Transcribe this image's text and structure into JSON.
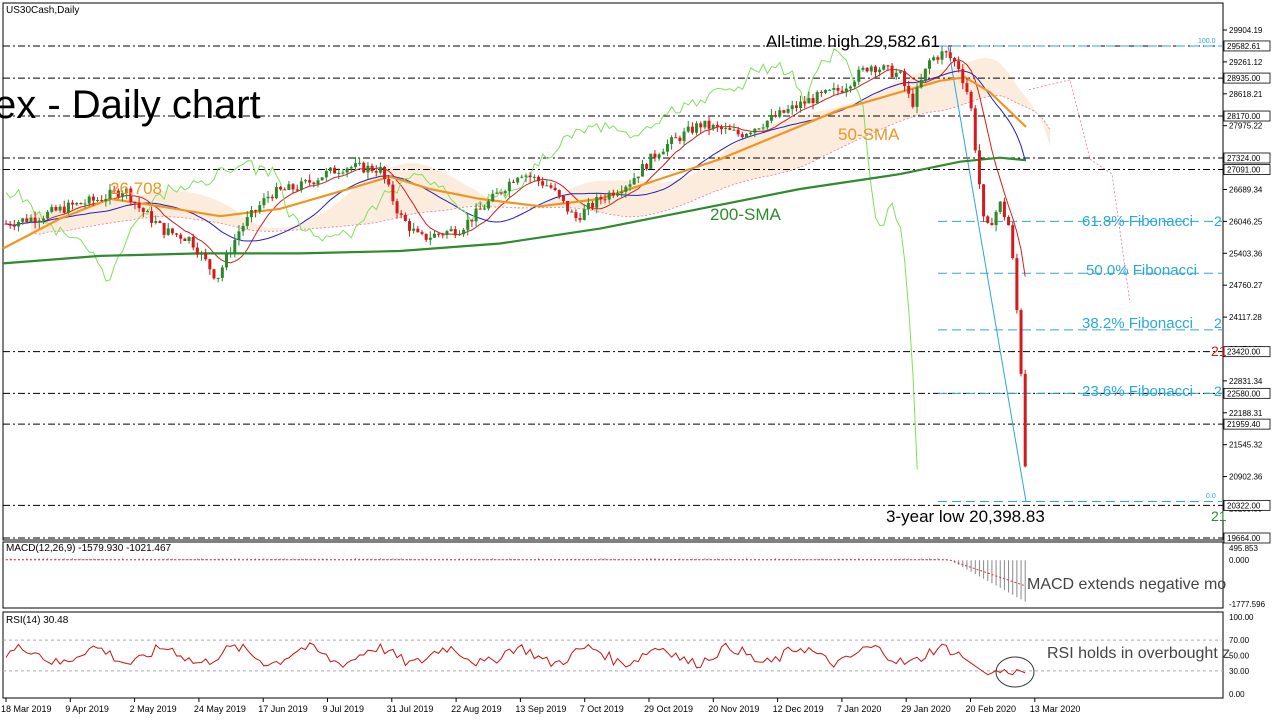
{
  "symbol_label": "US30Cash,Daily",
  "chart_title": "ex - Daily chart",
  "annotations": {
    "ath": "All-time high 29,582.61",
    "low": "3-year low 20,398.83",
    "sma50": "50-SMA",
    "sma200": "200-SMA",
    "level_26708": "26,708",
    "fib618": "61.8% Fibonacci",
    "fib50": "50.0% Fibonacci",
    "fib382": "38.2% Fibonacci",
    "fib236": "23.6% Fibonacci",
    "edge_21a": "21",
    "edge_21b": "21",
    "edge_2a": "2",
    "edge_2b": "2",
    "edge_2c": "2",
    "fib_small_100": "100.0",
    "fib_small_0": "0.0",
    "macd_note": "MACD extends negative mo",
    "rsi_note": "RSI holds in overbought z"
  },
  "panels": {
    "macd_label": "MACD(12,26,9) -1579.930 -1021.467",
    "rsi_label": "RSI(14) 30.48"
  },
  "colors": {
    "up_candle": "#2a8a2a",
    "down_candle": "#d41a1a",
    "sma50": "#f0951e",
    "sma200": "#2e8b2e",
    "chikou": "#7ee05a",
    "tenkan": "#d02020",
    "kijun": "#2020c0",
    "cloud": "#f5c9a0",
    "fib": "#2aa8d8",
    "hline": "#000000",
    "rsi_line": "#cc1111",
    "macd_signal": "#e03030"
  },
  "chart_data": [
    {
      "type": "candlestick",
      "series": [
        {
          "name": "50-SMA"
        },
        {
          "name": "200-SMA"
        }
      ],
      "y_ticks": [
        "29904.19",
        "29261.12",
        "28618.21",
        "27975.22",
        "27332.26",
        "26689.34",
        "26046.25",
        "25403.36",
        "24760.27",
        "24117.28",
        "23474.31",
        "22831.34",
        "22188.31",
        "21545.32",
        "20902.36",
        "20259.39"
      ],
      "y_range": [
        19664,
        29904.19
      ],
      "highlighted_levels": [
        {
          "value": 29582.61,
          "label": "29582.61",
          "style": "white"
        },
        {
          "value": 28935.0,
          "label": "28935.00",
          "style": "white"
        },
        {
          "value": 28170.0,
          "label": "28170.00",
          "style": "white"
        },
        {
          "value": 27324.0,
          "label": "27324.00",
          "style": "white"
        },
        {
          "value": 27091.0,
          "label": "27091.00",
          "style": "white"
        },
        {
          "value": 23420.0,
          "label": "23420.00",
          "style": "white"
        },
        {
          "value": 22580.0,
          "label": "22580.00",
          "style": "white"
        },
        {
          "value": 21959.4,
          "label": "21959.40",
          "style": "white"
        },
        {
          "value": 20322.0,
          "label": "20322.00",
          "style": "white"
        },
        {
          "value": 19664.0,
          "label": "19664.00",
          "style": "white"
        }
      ],
      "fib_levels": [
        {
          "value": 26046.25,
          "name": "61.8% Fibonacci"
        },
        {
          "value": 25000,
          "name": "50.0% Fibonacci"
        },
        {
          "value": 23860,
          "name": "38.2% Fibonacci"
        },
        {
          "value": 22580,
          "name": "23.6% Fibonacci"
        }
      ],
      "x_labels": [
        "18 Mar 2019",
        "9 Apr 2019",
        "2 May 2019",
        "24 May 2019",
        "17 Jun 2019",
        "9 Jul 2019",
        "31 Jul 2019",
        "22 Aug 2019",
        "13 Sep 2019",
        "7 Oct 2019",
        "29 Oct 2019",
        "20 Nov 2019",
        "12 Dec 2019",
        "7 Jan 2020",
        "29 Jan 2020",
        "20 Feb 2020",
        "13 Mar 2020"
      ],
      "all_time_high": 29582.61,
      "three_year_low": 20398.83
    },
    {
      "type": "bar",
      "name": "MACD(12,26,9)",
      "y_ticks": [
        "495.853",
        "0.000",
        "-1777.596"
      ],
      "y_range": [
        -1777.596,
        495.853
      ]
    },
    {
      "type": "line",
      "name": "RSI(14)",
      "y_ticks": [
        "100.00",
        "70.00",
        "50.00",
        "30.00",
        "0.00"
      ],
      "y_range": [
        0,
        100
      ]
    }
  ]
}
